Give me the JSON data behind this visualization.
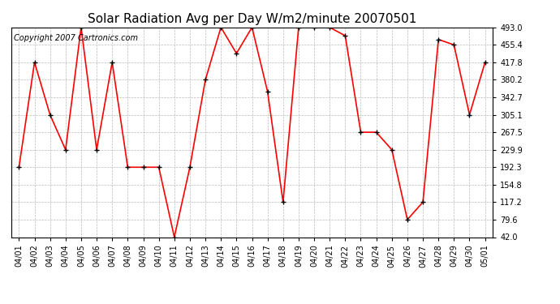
{
  "title": "Solar Radiation Avg per Day W/m2/minute 20070501",
  "copyright": "Copyright 2007 Cartronics.com",
  "dates": [
    "04/01",
    "04/02",
    "04/03",
    "04/04",
    "04/05",
    "04/06",
    "04/07",
    "04/08",
    "04/09",
    "04/10",
    "04/11",
    "04/12",
    "04/13",
    "04/14",
    "04/15",
    "04/16",
    "04/17",
    "04/18",
    "04/19",
    "04/20",
    "04/21",
    "04/22",
    "04/23",
    "04/24",
    "04/25",
    "04/26",
    "04/27",
    "04/28",
    "04/29",
    "04/30",
    "05/01"
  ],
  "values": [
    192.3,
    417.8,
    305.1,
    229.9,
    493.0,
    229.9,
    417.8,
    192.3,
    192.3,
    192.3,
    42.0,
    192.3,
    380.2,
    493.0,
    437.0,
    493.0,
    355.0,
    117.2,
    493.0,
    493.0,
    493.0,
    475.0,
    267.5,
    267.5,
    229.9,
    79.6,
    117.2,
    467.0,
    455.4,
    305.1,
    417.8
  ],
  "y_ticks": [
    42.0,
    79.6,
    117.2,
    154.8,
    192.3,
    229.9,
    267.5,
    305.1,
    342.7,
    380.2,
    417.8,
    455.4,
    493.0
  ],
  "ymin": 42.0,
  "ymax": 493.0,
  "line_color": "#ff0000",
  "marker_color": "#000000",
  "bg_color": "#ffffff",
  "grid_color": "#bbbbbb",
  "title_fontsize": 11,
  "copyright_fontsize": 7,
  "tick_fontsize": 7,
  "fig_width": 6.9,
  "fig_height": 3.75,
  "dpi": 100
}
